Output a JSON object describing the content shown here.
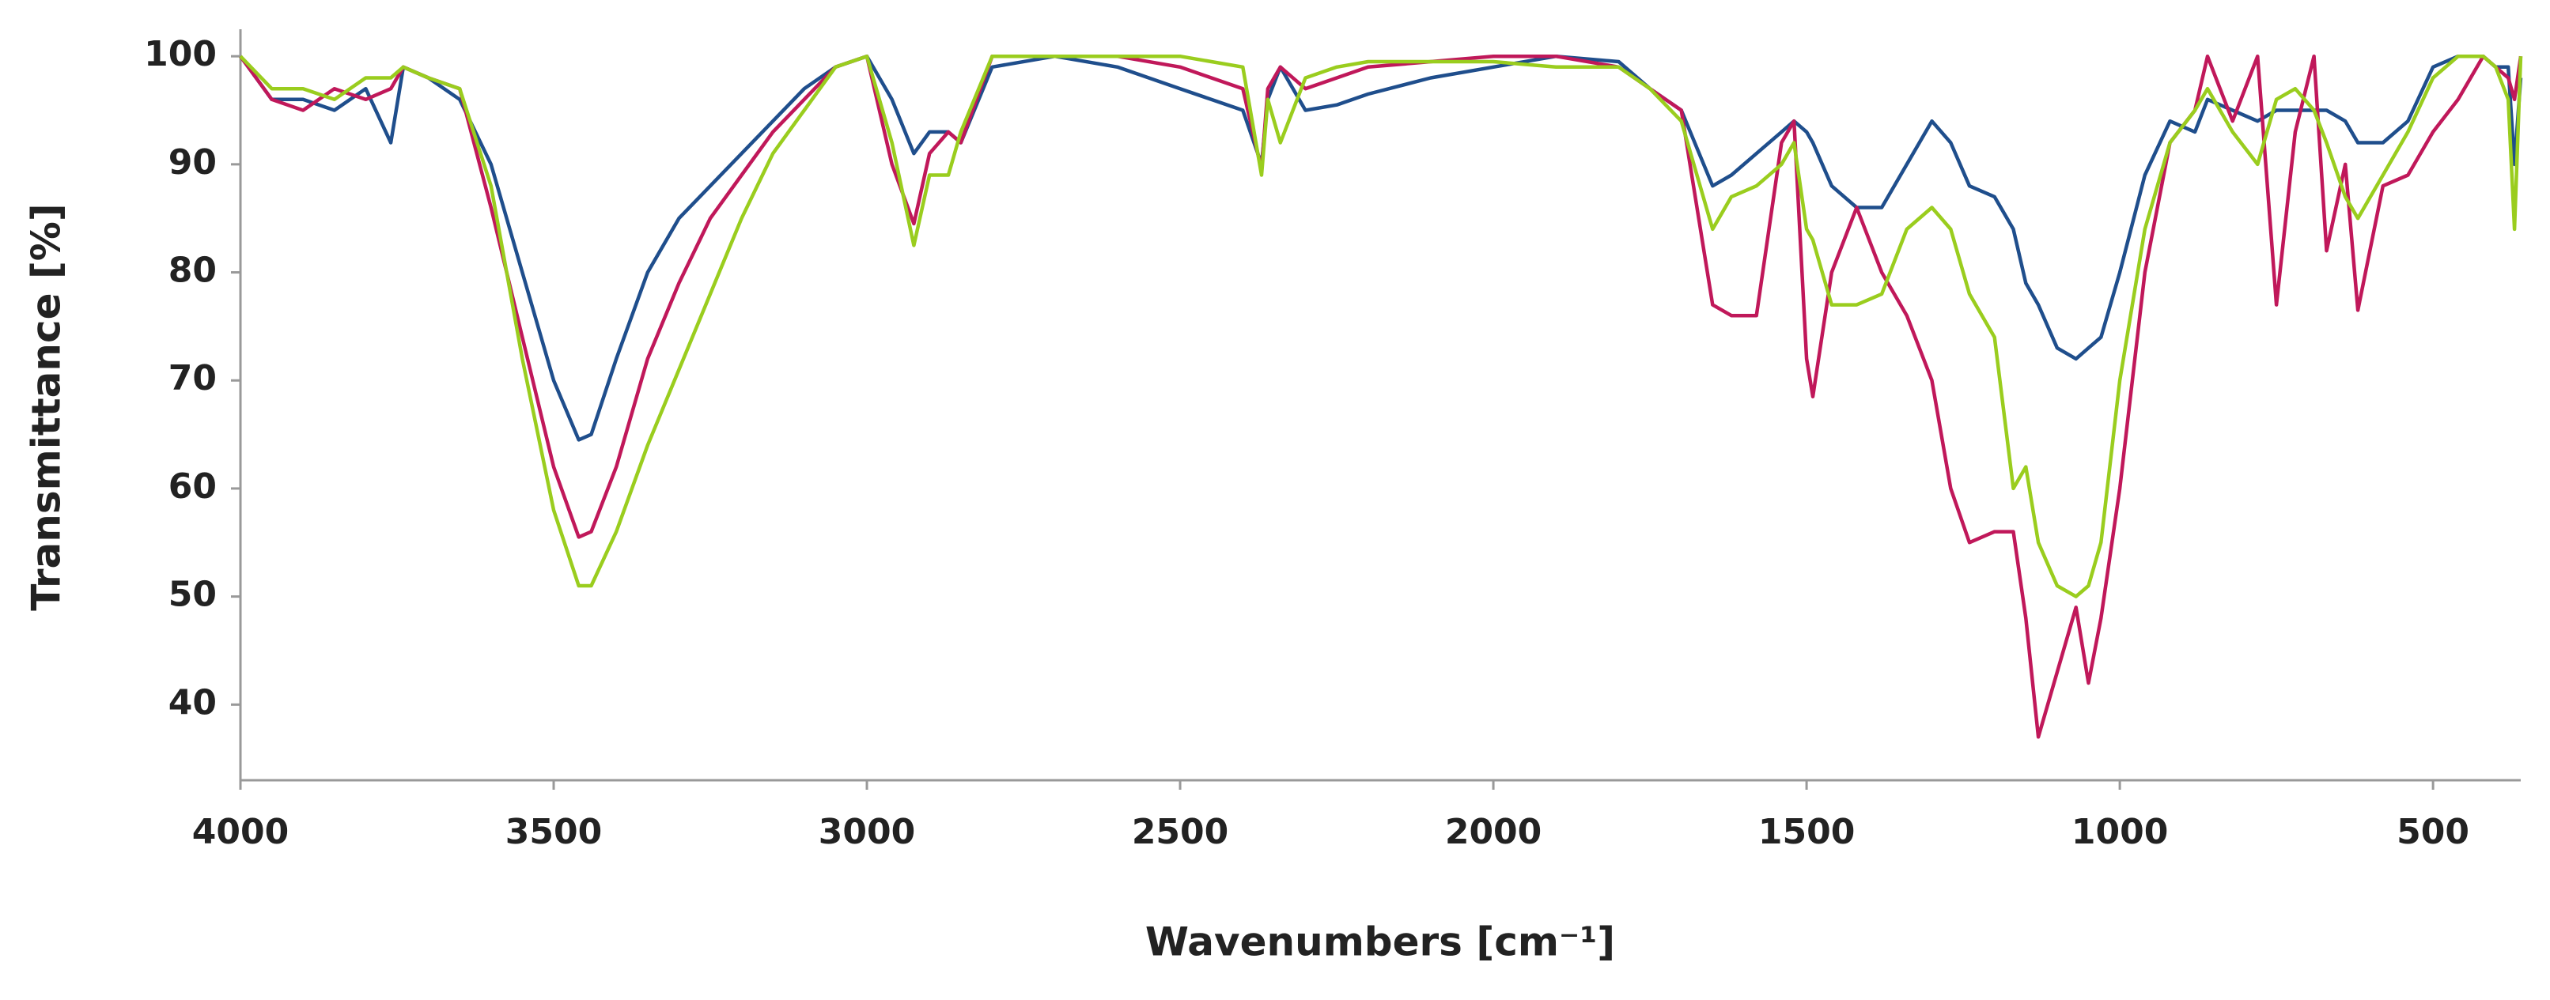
{
  "chart_data": {
    "type": "line",
    "x_label": "Wavenumbers [cm⁻¹]",
    "y_label": "Transmittance [%]",
    "xlim": [
      4000,
      360
    ],
    "ylim": [
      33,
      102.5
    ],
    "xticks": [
      4000,
      3500,
      3000,
      2500,
      2000,
      1500,
      1000,
      500
    ],
    "yticks": [
      40,
      50,
      60,
      70,
      80,
      90,
      100
    ],
    "x": [
      4000,
      3950,
      3900,
      3850,
      3800,
      3760,
      3740,
      3700,
      3650,
      3600,
      3550,
      3500,
      3460,
      3440,
      3400,
      3350,
      3300,
      3250,
      3200,
      3150,
      3100,
      3050,
      3000,
      2960,
      2925,
      2900,
      2870,
      2850,
      2800,
      2700,
      2600,
      2500,
      2400,
      2370,
      2360,
      2340,
      2300,
      2250,
      2200,
      2100,
      2000,
      1900,
      1800,
      1750,
      1700,
      1650,
      1620,
      1580,
      1540,
      1520,
      1500,
      1490,
      1460,
      1420,
      1380,
      1340,
      1300,
      1270,
      1240,
      1200,
      1170,
      1150,
      1130,
      1100,
      1070,
      1050,
      1030,
      1000,
      960,
      920,
      880,
      860,
      820,
      780,
      750,
      720,
      690,
      670,
      640,
      620,
      580,
      540,
      500,
      460,
      420,
      400,
      380,
      370,
      360
    ],
    "series": [
      {
        "color": "#1f4e8c",
        "values": [
          100,
          96,
          96,
          95,
          97,
          92,
          99,
          98,
          96,
          90,
          80,
          70,
          64.5,
          65,
          72,
          80,
          85,
          88,
          91,
          94,
          97,
          99,
          100,
          96,
          91,
          93,
          93,
          92,
          99,
          100,
          99,
          97,
          95,
          90,
          96,
          99,
          95,
          95.5,
          96.5,
          98,
          99,
          100,
          99.5,
          97,
          95,
          88,
          89,
          91,
          93,
          94,
          93,
          92,
          88,
          86,
          86,
          90,
          94,
          92,
          88,
          87,
          84,
          79,
          77,
          73,
          72,
          73,
          74,
          80,
          89,
          94,
          93,
          96,
          95,
          94,
          95,
          95,
          95,
          95,
          94,
          92,
          92,
          94,
          99,
          100,
          100,
          99,
          99,
          90,
          98
        ]
      },
      {
        "color": "#c0185a",
        "values": [
          100,
          96,
          95,
          97,
          96,
          97,
          99,
          98,
          97,
          86,
          74,
          62,
          55.5,
          56,
          62,
          72,
          79,
          85,
          89,
          93,
          96,
          99,
          100,
          90,
          84.5,
          91,
          93,
          92,
          100,
          100,
          100,
          99,
          97,
          89.5,
          97,
          99,
          97,
          98,
          99,
          99.5,
          100,
          100,
          99,
          97,
          95,
          77,
          76,
          76,
          92,
          94,
          72,
          68.5,
          80,
          86,
          80,
          76,
          70,
          60,
          55,
          56,
          56,
          48,
          37,
          43,
          49,
          42,
          48,
          60,
          80,
          92,
          95,
          100,
          94,
          100,
          77,
          93,
          100,
          82,
          90,
          76.5,
          88,
          89,
          93,
          96,
          100,
          99,
          98,
          96,
          100
        ]
      },
      {
        "color": "#9acd1e",
        "values": [
          100,
          97,
          97,
          96,
          98,
          98,
          99,
          98,
          97,
          88,
          72,
          58,
          51,
          51,
          56,
          64,
          71,
          78,
          85,
          91,
          95,
          99,
          100,
          92,
          82.5,
          89,
          89,
          93,
          100,
          100,
          100,
          100,
          99,
          89,
          96,
          92,
          98,
          99,
          99.5,
          99.5,
          99.5,
          99,
          99,
          97,
          94,
          84,
          87,
          88,
          90,
          92,
          84,
          83,
          77,
          77,
          78,
          84,
          86,
          84,
          78,
          74,
          60,
          62,
          55,
          51,
          50,
          51,
          55,
          70,
          84,
          92,
          95,
          97,
          93,
          90,
          96,
          97,
          95,
          92,
          87,
          85,
          89,
          93,
          98,
          100,
          100,
          99,
          96,
          84,
          100
        ]
      }
    ]
  }
}
